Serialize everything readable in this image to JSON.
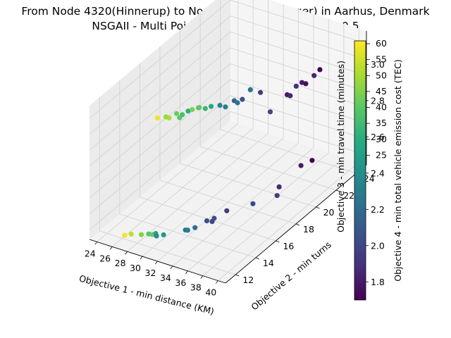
{
  "chart_data": {
    "type": "scatter",
    "projection": "3d",
    "title": "From Node 4320(Hinnerup) to Node 4551(Hasselager) in Aarhus, Denmark",
    "subtitle": "NSGAII - Multi Point Crossover, Mutation Prob 0.5",
    "xlabel": "Objective 1 - min distance (KM)",
    "ylabel": "Objective 2 - min turns",
    "zlabel": "Objective 3 - min travel time (minutes)",
    "colorbar_label": "Objective 4 - min total vehicle emission cost (TEC)",
    "x_ticks": [
      "24",
      "26",
      "28",
      "30",
      "32",
      "34",
      "36",
      "38",
      "40"
    ],
    "y_ticks": [
      "12",
      "14",
      "16",
      "18",
      "20",
      "22",
      "24"
    ],
    "z_ticks": [
      "25",
      "30",
      "35",
      "40",
      "45",
      "50",
      "55",
      "60"
    ],
    "colorbar_ticks": [
      "1.8",
      "2.0",
      "2.2",
      "2.4",
      "2.6",
      "2.8",
      "3.0"
    ],
    "xlim": [
      23,
      41
    ],
    "ylim": [
      11,
      25
    ],
    "zlim": [
      22,
      64
    ],
    "clim": [
      1.7,
      3.13
    ],
    "colormap": "viridis",
    "grid": true,
    "points": [
      {
        "x": 24.0,
        "y": 17.0,
        "z": 45.0,
        "c": 3.1
      },
      {
        "x": 25.8,
        "y": 16.5,
        "z": 48.0,
        "c": 2.9
      },
      {
        "x": 26.2,
        "y": 16.5,
        "z": 48.0,
        "c": 2.95
      },
      {
        "x": 26.8,
        "y": 16.8,
        "z": 49.0,
        "c": 2.8
      },
      {
        "x": 27.2,
        "y": 16.8,
        "z": 48.0,
        "c": 2.75
      },
      {
        "x": 27.3,
        "y": 17.0,
        "z": 48.5,
        "c": 2.7
      },
      {
        "x": 27.8,
        "y": 17.2,
        "z": 49.5,
        "c": 2.6
      },
      {
        "x": 28.2,
        "y": 17.3,
        "z": 50.0,
        "c": 2.85
      },
      {
        "x": 28.8,
        "y": 17.5,
        "z": 50.5,
        "c": 2.4
      },
      {
        "x": 29.0,
        "y": 17.4,
        "z": 51.0,
        "c": 2.78
      },
      {
        "x": 29.8,
        "y": 17.4,
        "z": 51.3,
        "c": 2.65
      },
      {
        "x": 30.3,
        "y": 17.6,
        "z": 51.8,
        "c": 2.55
      },
      {
        "x": 31.2,
        "y": 17.8,
        "z": 52.3,
        "c": 2.35
      },
      {
        "x": 31.8,
        "y": 17.9,
        "z": 52.0,
        "c": 2.3
      },
      {
        "x": 32.3,
        "y": 18.4,
        "z": 53.0,
        "c": 2.15
      },
      {
        "x": 32.6,
        "y": 18.5,
        "z": 52.3,
        "c": 2.25
      },
      {
        "x": 33.1,
        "y": 18.6,
        "z": 53.5,
        "c": 2.05
      },
      {
        "x": 33.5,
        "y": 19.1,
        "z": 55.5,
        "c": 2.25
      },
      {
        "x": 34.7,
        "y": 19.2,
        "z": 55.3,
        "c": 1.95
      },
      {
        "x": 27.0,
        "y": 11.5,
        "z": 25.0,
        "c": 3.1
      },
      {
        "x": 27.6,
        "y": 11.7,
        "z": 25.3,
        "c": 3.0
      },
      {
        "x": 28.8,
        "y": 11.8,
        "z": 25.8,
        "c": 2.85
      },
      {
        "x": 29.5,
        "y": 12.0,
        "z": 26.0,
        "c": 2.75
      },
      {
        "x": 30.0,
        "y": 12.0,
        "z": 26.2,
        "c": 2.8
      },
      {
        "x": 30.3,
        "y": 12.1,
        "z": 26.5,
        "c": 2.55
      },
      {
        "x": 30.4,
        "y": 12.1,
        "z": 25.8,
        "c": 2.4
      },
      {
        "x": 31.2,
        "y": 12.2,
        "z": 26.5,
        "c": 2.45
      },
      {
        "x": 33.3,
        "y": 12.8,
        "z": 28.0,
        "c": 2.25
      },
      {
        "x": 33.6,
        "y": 12.8,
        "z": 28.2,
        "c": 2.3
      },
      {
        "x": 34.3,
        "y": 13.0,
        "z": 29.0,
        "c": 2.2
      },
      {
        "x": 35.2,
        "y": 13.5,
        "z": 30.5,
        "c": 2.05
      },
      {
        "x": 35.9,
        "y": 13.5,
        "z": 30.8,
        "c": 2.0
      },
      {
        "x": 35.9,
        "y": 13.7,
        "z": 31.3,
        "c": 2.05
      },
      {
        "x": 36.5,
        "y": 14.5,
        "z": 32.0,
        "c": 1.95
      },
      {
        "x": 35.2,
        "y": 19.8,
        "z": 48.0,
        "c": 2.0
      },
      {
        "x": 36.5,
        "y": 20.5,
        "z": 52.5,
        "c": 1.8
      },
      {
        "x": 36.9,
        "y": 20.5,
        "z": 52.5,
        "c": 1.85
      },
      {
        "x": 37.3,
        "y": 20.8,
        "z": 55.0,
        "c": 1.9
      },
      {
        "x": 37.8,
        "y": 21.0,
        "z": 56.0,
        "c": 1.8
      },
      {
        "x": 38.3,
        "y": 21.0,
        "z": 56.0,
        "c": 1.75
      },
      {
        "x": 39.0,
        "y": 21.3,
        "z": 58.3,
        "c": 1.85
      },
      {
        "x": 39.5,
        "y": 21.5,
        "z": 60.0,
        "c": 1.7
      },
      {
        "x": 37.3,
        "y": 16.5,
        "z": 29.5,
        "c": 2.0
      },
      {
        "x": 38.5,
        "y": 18.0,
        "z": 29.0,
        "c": 1.95
      },
      {
        "x": 38.5,
        "y": 18.2,
        "z": 31.2,
        "c": 1.85
      },
      {
        "x": 39.0,
        "y": 20.0,
        "z": 33.5,
        "c": 1.8
      },
      {
        "x": 40.2,
        "y": 20.2,
        "z": 35.5,
        "c": 1.7
      }
    ]
  }
}
